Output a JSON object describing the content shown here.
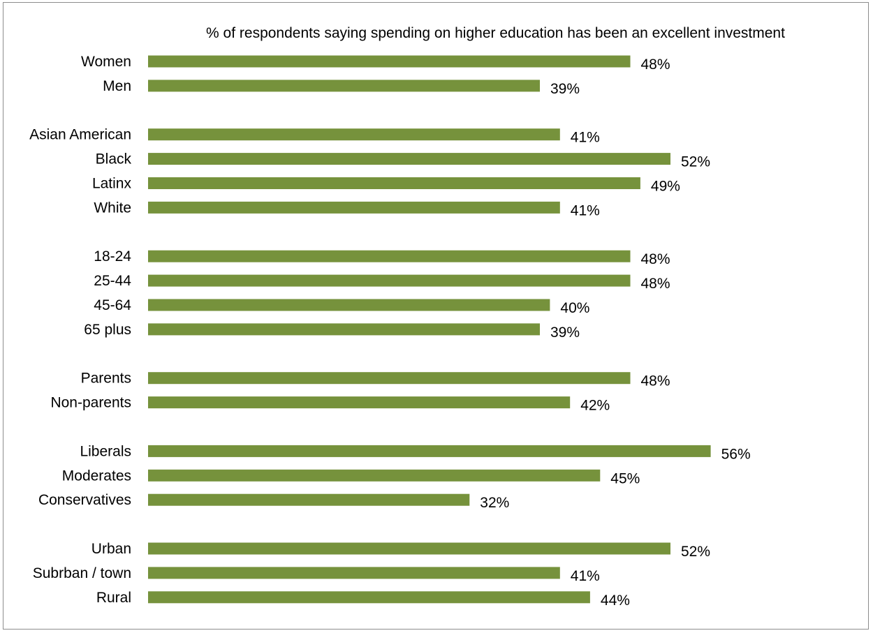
{
  "chart_data": {
    "type": "bar",
    "orientation": "horizontal",
    "title": "% of respondents saying spending on higher education has been an excellent investment",
    "xlabel": "",
    "ylabel": "",
    "bar_color": "#76923c",
    "grid": false,
    "legend": "none",
    "xlim": [
      0,
      56
    ],
    "groups": [
      {
        "rows": [
          {
            "category": "Women",
            "value": 48,
            "label": "48%"
          },
          {
            "category": "Men",
            "value": 39,
            "label": "39%"
          }
        ]
      },
      {
        "rows": [
          {
            "category": "Asian American",
            "value": 41,
            "label": "41%"
          },
          {
            "category": "Black",
            "value": 52,
            "label": "52%"
          },
          {
            "category": "Latinx",
            "value": 49,
            "label": "49%"
          },
          {
            "category": "White",
            "value": 41,
            "label": "41%"
          }
        ]
      },
      {
        "rows": [
          {
            "category": "18-24",
            "value": 48,
            "label": "48%"
          },
          {
            "category": "25-44",
            "value": 48,
            "label": "48%"
          },
          {
            "category": "45-64",
            "value": 40,
            "label": "40%"
          },
          {
            "category": "65 plus",
            "value": 39,
            "label": "39%"
          }
        ]
      },
      {
        "rows": [
          {
            "category": "Parents",
            "value": 48,
            "label": "48%"
          },
          {
            "category": "Non-parents",
            "value": 42,
            "label": "42%"
          }
        ]
      },
      {
        "rows": [
          {
            "category": "Liberals",
            "value": 56,
            "label": "56%"
          },
          {
            "category": "Moderates",
            "value": 45,
            "label": "45%"
          },
          {
            "category": "Conservatives",
            "value": 32,
            "label": "32%"
          }
        ]
      },
      {
        "rows": [
          {
            "category": "Urban",
            "value": 52,
            "label": "52%"
          },
          {
            "category": "Subrban / town",
            "value": 41,
            "label": "41%"
          },
          {
            "category": "Rural",
            "value": 44,
            "label": "44%"
          }
        ]
      }
    ]
  }
}
